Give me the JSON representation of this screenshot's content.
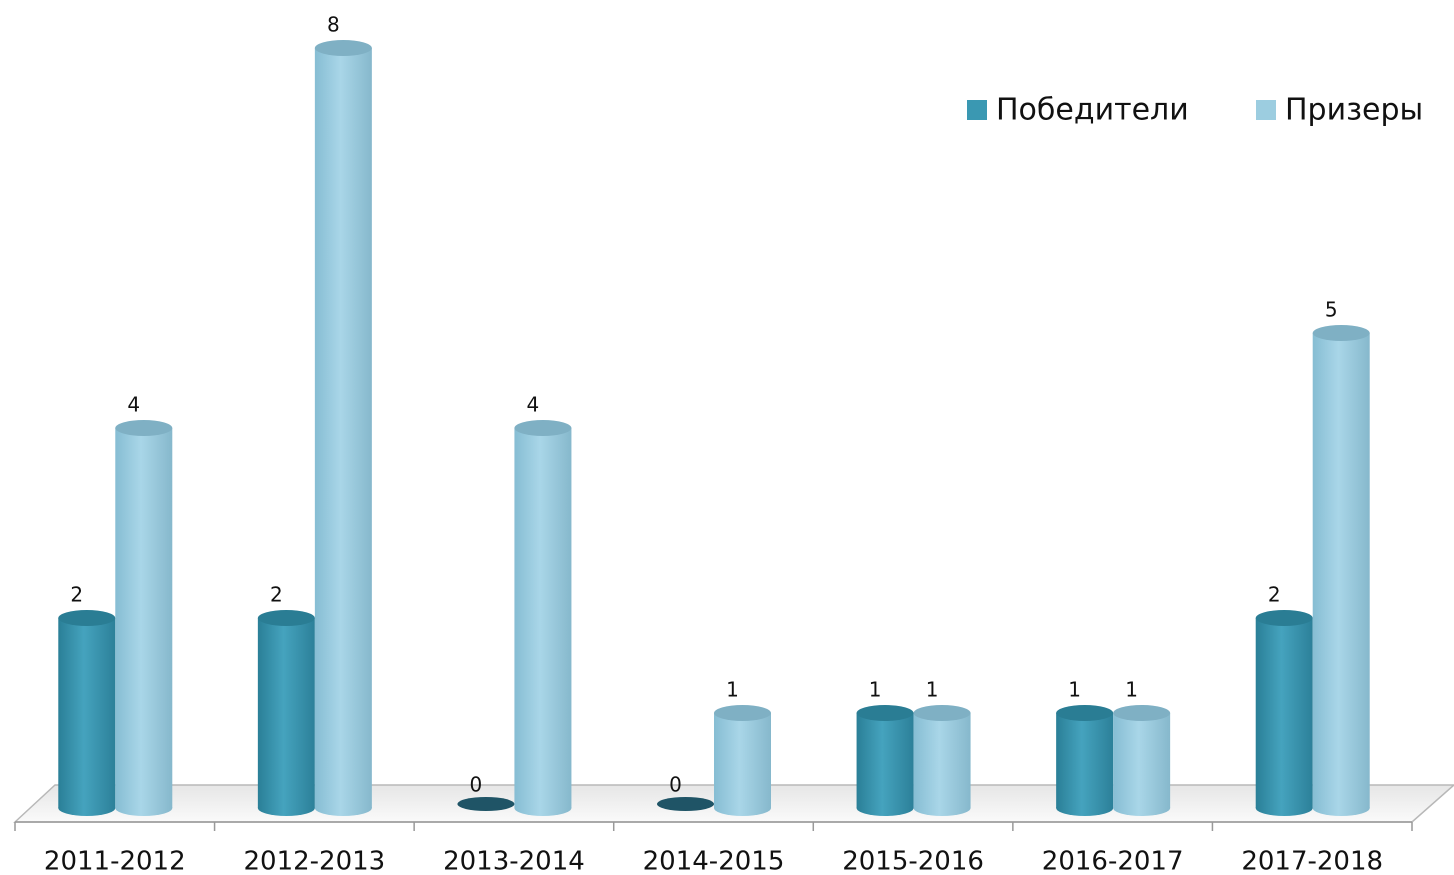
{
  "chart_data": {
    "type": "bar3d",
    "categories": [
      "2011-2012",
      "2012-2013",
      "2013-2014",
      "2014-2015",
      "2015-2016",
      "2016-2017",
      "2017-2018"
    ],
    "series": [
      {
        "name": "Победители",
        "color": "#3a98b2",
        "values": [
          2,
          2,
          0,
          0,
          1,
          1,
          2
        ]
      },
      {
        "name": "Призеры",
        "color": "#9ccde0",
        "values": [
          4,
          8,
          4,
          1,
          1,
          1,
          5
        ]
      }
    ],
    "ylim": [
      0,
      8
    ],
    "legend": "top-right"
  }
}
